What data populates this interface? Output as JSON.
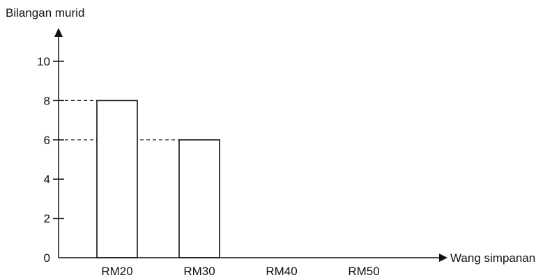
{
  "chart_data": {
    "type": "bar",
    "title": "",
    "ylabel": "Bilangan murid",
    "xlabel": "Wang simpanan",
    "categories": [
      "RM20",
      "RM30",
      "RM40",
      "RM50"
    ],
    "values": [
      8,
      6,
      null,
      null
    ],
    "ylim": [
      0,
      10
    ],
    "yticks": [
      0,
      2,
      4,
      6,
      8,
      10
    ],
    "ytick_labels": [
      "0",
      "2",
      "4",
      "6",
      "8",
      "10"
    ],
    "grid": false,
    "reference_lines": [
      8,
      6
    ],
    "bar_fill": "#ffffff",
    "line_color": "#111111"
  }
}
